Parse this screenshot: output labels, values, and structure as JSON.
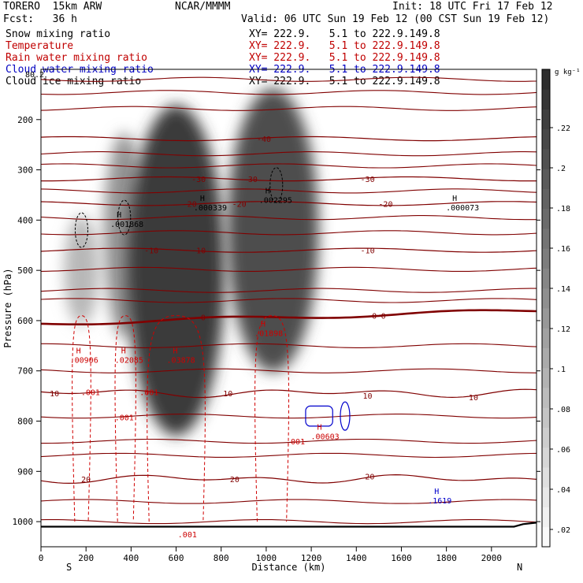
{
  "header": {
    "model": "TORERO  15km ARW",
    "center": "NCAR/MMMM",
    "init": "Init: 18 UTC Fri 17 Feb 12",
    "fcst": "Fcst:   36 h",
    "valid": "Valid: 06 UTC Sun 19 Feb 12 (00 CST Sun 19 Feb 12)"
  },
  "fields": [
    {
      "name": "Snow mixing ratio",
      "xy": "XY= 222.9.   5.1 to 222.9.149.8",
      "color": "#000000"
    },
    {
      "name": "Temperature",
      "xy": "XY= 222.9.   5.1 to 222.9.149.8",
      "color": "#c00000"
    },
    {
      "name": "Rain water mixing ratio",
      "xy": "XY= 222.9.   5.1 to 222.9.149.8",
      "color": "#c00000"
    },
    {
      "name": "Cloud water mixing ratio",
      "xy": "XY= 222.9.   5.1 to 222.9.149.8",
      "color": "#0000c0"
    },
    {
      "name": "Cloud ice mixing ratio",
      "xy": "XY= 222.9.   5.1 to 222.9.149.8",
      "color": "#000000"
    }
  ],
  "chart_data": {
    "type": "cross-section contour",
    "xlabel": "Distance (km)",
    "ylabel": "Pressure (hPa)",
    "x_ticks": [
      0,
      200,
      400,
      600,
      800,
      1000,
      1200,
      1400,
      1600,
      1800,
      2000
    ],
    "y_ticks": [
      200,
      300,
      400,
      500,
      600,
      700,
      800,
      900,
      1000
    ],
    "xlim": [
      0,
      2200
    ],
    "ylim": [
      1050,
      100
    ],
    "end_labels": {
      "left": "S",
      "right": "N"
    },
    "top_corner_label": "80.2",
    "colorbar": {
      "unit": "g kg⁻¹",
      "ticks": [
        ".02",
        ".04",
        ".06",
        ".08",
        ".1",
        ".12",
        ".14",
        ".16",
        ".18",
        ".2",
        ".22"
      ]
    },
    "snow_blobs": [
      {
        "x": 180,
        "p": 500,
        "peak": 0.08
      },
      {
        "x": 370,
        "p": 430,
        "peak": 0.12
      },
      {
        "x": 600,
        "p": 500,
        "peak": 0.22
      },
      {
        "x": 1030,
        "p": 420,
        "peak": 0.2
      }
    ],
    "isotherms": [
      {
        "value": -40,
        "label": "-40",
        "label_x": 990
      },
      {
        "value": -30,
        "label": "-30",
        "label_x": 700
      },
      {
        "value": -20,
        "label": "-20",
        "label_x": 1530
      },
      {
        "value": -10,
        "label": "-10",
        "label_x": 1450
      },
      {
        "value": 0,
        "label": "0",
        "label_x": 720
      },
      {
        "value": 10,
        "label": "10",
        "label_x": 830
      },
      {
        "value": 20,
        "label": "20",
        "label_x": 860
      }
    ],
    "contour_labels": [
      {
        "text": "-40",
        "x": 990,
        "p": 238,
        "color": "#800000"
      },
      {
        "text": "-30",
        "x": 700,
        "p": 318,
        "color": "#800000"
      },
      {
        "text": "-30",
        "x": 930,
        "p": 318,
        "color": "#800000"
      },
      {
        "text": "-30",
        "x": 1450,
        "p": 318,
        "color": "#800000"
      },
      {
        "text": "-20",
        "x": 660,
        "p": 367,
        "color": "#800000"
      },
      {
        "text": "-20",
        "x": 880,
        "p": 367,
        "color": "#800000"
      },
      {
        "text": "-20",
        "x": 1530,
        "p": 367,
        "color": "#800000"
      },
      {
        "text": "-10",
        "x": 490,
        "p": 460,
        "color": "#800000"
      },
      {
        "text": "-10",
        "x": 700,
        "p": 460,
        "color": "#800000"
      },
      {
        "text": "-10",
        "x": 1450,
        "p": 460,
        "color": "#800000"
      },
      {
        "text": "0",
        "x": 720,
        "p": 593,
        "color": "#800000"
      },
      {
        "text": "0",
        "x": 1480,
        "p": 590,
        "color": "#800000"
      },
      {
        "text": "0",
        "x": 1520,
        "p": 590,
        "color": "#800000"
      },
      {
        "text": "10",
        "x": 60,
        "p": 744,
        "color": "#800000"
      },
      {
        "text": "10",
        "x": 830,
        "p": 744,
        "color": "#800000"
      },
      {
        "text": "10",
        "x": 1450,
        "p": 749,
        "color": "#800000"
      },
      {
        "text": "10",
        "x": 1920,
        "p": 752,
        "color": "#800000"
      },
      {
        "text": "20",
        "x": 200,
        "p": 915,
        "color": "#800000"
      },
      {
        "text": "20",
        "x": 860,
        "p": 915,
        "color": "#800000"
      },
      {
        "text": "20",
        "x": 1460,
        "p": 910,
        "color": "#800000"
      },
      {
        "text": ".001",
        "x": 220,
        "p": 742,
        "color": "#cc0000"
      },
      {
        "text": ".001",
        "x": 480,
        "p": 742,
        "color": "#cc0000"
      },
      {
        "text": ".001",
        "x": 370,
        "p": 792,
        "color": "#cc0000"
      },
      {
        "text": ".001",
        "x": 1130,
        "p": 840,
        "color": "#cc0000"
      },
      {
        "text": ".001",
        "x": 650,
        "p": 1025,
        "color": "#cc0000"
      }
    ],
    "maxima": [
      {
        "marker": "H",
        "value": ".001868",
        "x": 350,
        "p": 398,
        "color": "#000000"
      },
      {
        "marker": "H",
        "value": ".000339",
        "x": 720,
        "p": 365,
        "color": "#000000"
      },
      {
        "marker": "H",
        "value": ".002295",
        "x": 1010,
        "p": 350,
        "color": "#000000"
      },
      {
        "marker": "H",
        "value": ".000073",
        "x": 1840,
        "p": 365,
        "color": "#000000"
      },
      {
        "marker": "H",
        "value": ".00906",
        "x": 170,
        "p": 668,
        "color": "#cc0000"
      },
      {
        "marker": "H",
        "value": ".02085",
        "x": 370,
        "p": 668,
        "color": "#cc0000"
      },
      {
        "marker": "H",
        "value": ".03878",
        "x": 600,
        "p": 668,
        "color": "#cc0000"
      },
      {
        "marker": "H",
        "value": ".01898",
        "x": 990,
        "p": 615,
        "color": "#cc0000"
      },
      {
        "marker": "H",
        "value": ".00603",
        "x": 1240,
        "p": 820,
        "color": "#cc0000"
      },
      {
        "marker": "H",
        "value": ".1619",
        "x": 1760,
        "p": 948,
        "color": "#0000cc"
      }
    ]
  }
}
